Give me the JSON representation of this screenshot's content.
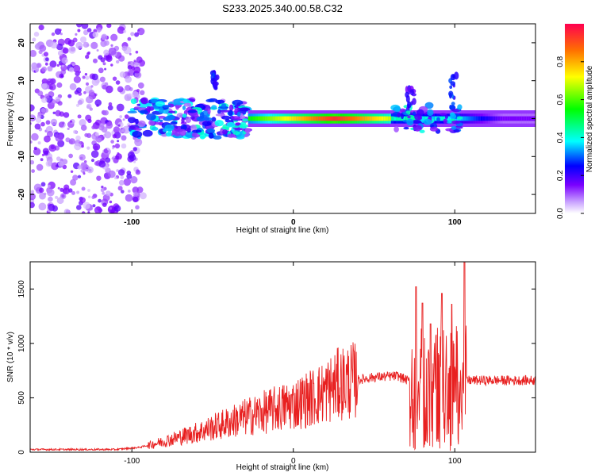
{
  "title": "S233.2025.340.00.58.C32",
  "colors": {
    "signal": "#e82020",
    "axis": "#000000",
    "background": "#ffffff"
  },
  "chart_data": [
    {
      "type": "heatmap",
      "name": "spectrogram",
      "xlabel": "Height of straight line (km)",
      "ylabel": "Frequency (Hz)",
      "xlim": [
        -163,
        150
      ],
      "ylim": [
        -25,
        25
      ],
      "xticks": [
        -100,
        0,
        100
      ],
      "yticks": [
        -20,
        -10,
        0,
        10,
        20
      ],
      "colorbar": {
        "label": "Normalized spectral amplitude",
        "range": [
          0.0,
          1.0
        ],
        "ticks": [
          0.0,
          0.2,
          0.4,
          0.6,
          0.8
        ],
        "tick_labels": [
          "0.0",
          "0.2",
          "0.4",
          "0.6",
          "0.8"
        ]
      },
      "regions": [
        {
          "description": "noise",
          "x_range": [
            -163,
            -95
          ],
          "amplitude": 0.1
        },
        {
          "description": "scattered signal",
          "x_range": [
            -100,
            -28
          ],
          "freq_center": 0,
          "amplitude": 0.3
        },
        {
          "description": "spike",
          "x_range": [
            -50,
            -47
          ],
          "freq_range": [
            8,
            13
          ],
          "amplitude": 0.2
        },
        {
          "description": "carrier",
          "x_range": [
            -28,
            150
          ],
          "freq_center": 0,
          "amplitude": 0.95,
          "peak_x": 25
        },
        {
          "description": "spike",
          "x_range": [
            97,
            101
          ],
          "freq_range": [
            3,
            12
          ],
          "amplitude": 0.2
        },
        {
          "description": "spike",
          "x_range": [
            70,
            75
          ],
          "freq_range": [
            3,
            8
          ],
          "amplitude": 0.15
        }
      ]
    },
    {
      "type": "line",
      "name": "snr",
      "xlabel": "Height of straight line (km)",
      "ylabel": "SNR (10 * v/v)",
      "xlim": [
        -163,
        150
      ],
      "ylim": [
        0,
        1750
      ],
      "xticks": [
        -100,
        0,
        100
      ],
      "yticks": [
        0,
        500,
        1000,
        1500
      ],
      "trend": [
        {
          "x": -163,
          "y": 25
        },
        {
          "x": -110,
          "y": 25
        },
        {
          "x": -95,
          "y": 45
        },
        {
          "x": -80,
          "y": 100
        },
        {
          "x": -60,
          "y": 180
        },
        {
          "x": -45,
          "y": 250
        },
        {
          "x": -30,
          "y": 320
        },
        {
          "x": -15,
          "y": 380
        },
        {
          "x": 0,
          "y": 440
        },
        {
          "x": 15,
          "y": 520
        },
        {
          "x": 30,
          "y": 640
        },
        {
          "x": 50,
          "y": 690
        },
        {
          "x": 65,
          "y": 700
        },
        {
          "x": 72,
          "y": 650
        },
        {
          "x": 100,
          "y": 680
        },
        {
          "x": 106,
          "y": 660
        },
        {
          "x": 150,
          "y": 660
        }
      ],
      "peaks": [
        {
          "x": 76,
          "y": 1520
        },
        {
          "x": 80,
          "y": 1370
        },
        {
          "x": 85,
          "y": 1180
        },
        {
          "x": 92,
          "y": 1460
        },
        {
          "x": 98,
          "y": 1360
        },
        {
          "x": 106,
          "y": 1750
        }
      ]
    }
  ]
}
